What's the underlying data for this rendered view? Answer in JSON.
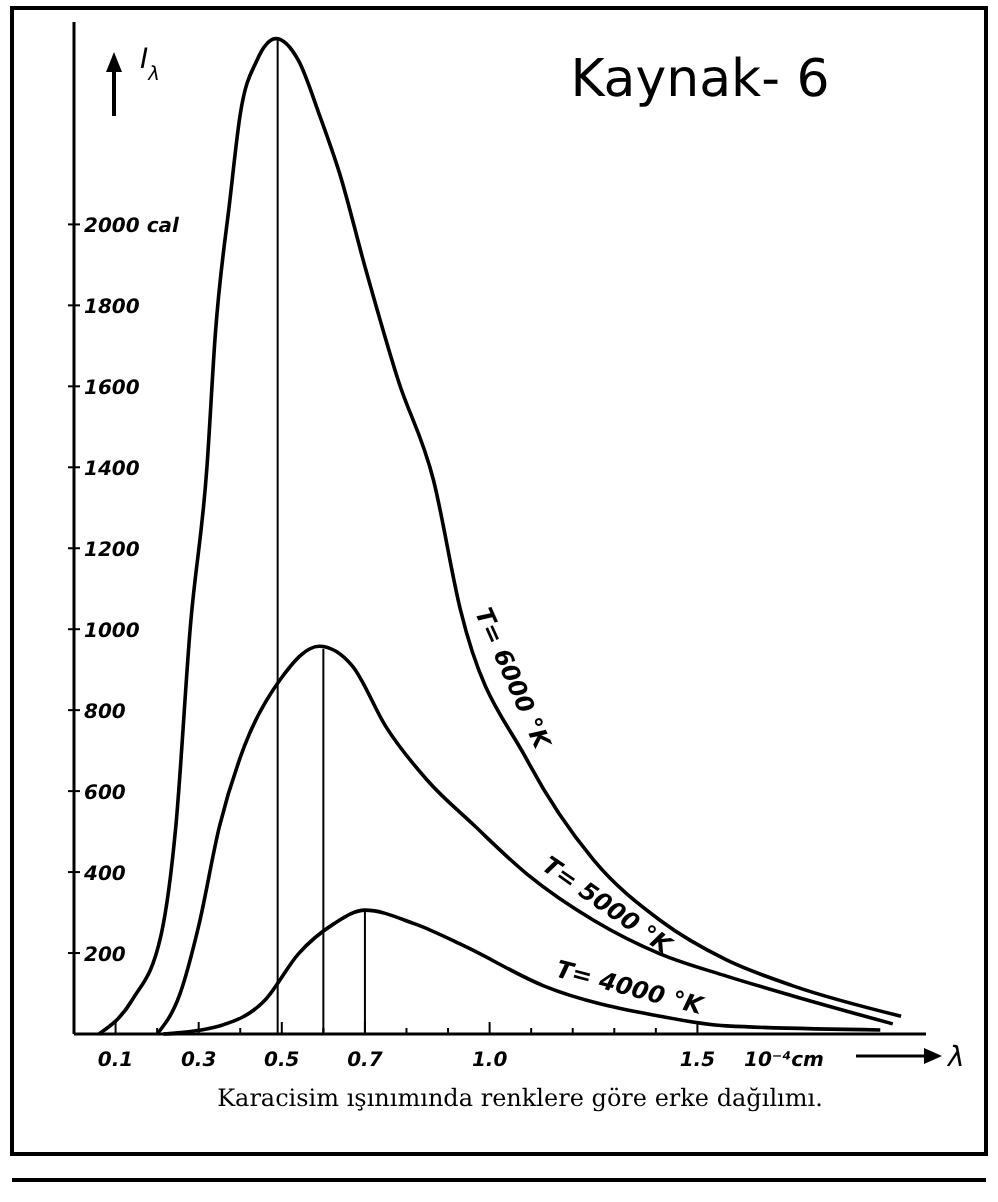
{
  "chart_data": {
    "type": "line",
    "title": "Kaynak- 6",
    "xlabel": "10⁻⁴cm",
    "ylabel": "I$_{λ}$",
    "annotations": [
      "λ",
      "Karacisim ışınımında renklere göre erke dağılımı."
    ],
    "xlim": [
      0,
      2.05
    ],
    "ylim": [
      0,
      2500
    ],
    "xticks": [
      0.1,
      {
        "value": 0.2,
        "label": null
      },
      0.3,
      {
        "value": 0.4,
        "label": null
      },
      0.5,
      {
        "value": 0.6,
        "label": null
      },
      0.7,
      {
        "value": 0.8,
        "label": null
      },
      {
        "value": 0.9,
        "label": null
      },
      {
        "value": 1,
        "label": "1.0"
      },
      {
        "value": 1.1,
        "label": null
      },
      {
        "value": 1.2,
        "label": null
      },
      {
        "value": 1.3,
        "label": null
      },
      {
        "value": 1.4,
        "label": null
      },
      1.5
    ],
    "yticks": [
      200,
      400,
      600,
      800,
      1000,
      1200,
      1400,
      1600,
      1800,
      {
        "value": 2000,
        "label": "2000 cal"
      }
    ],
    "grid": false,
    "marker": "none",
    "line_style": "solid",
    "ref_lines": [
      {
        "axis": "x",
        "value": 0.49,
        "color": "#000000"
      },
      {
        "axis": "x",
        "value": 0.6,
        "color": "#000000"
      },
      {
        "axis": "x",
        "value": 0.7,
        "color": "#000000"
      }
    ],
    "series": [
      {
        "name": "T= 6000 °K",
        "color": "#000000",
        "x": [
          0.06,
          0.14,
          0.21,
          0.245,
          0.28,
          0.32,
          0.34,
          0.375,
          0.4,
          0.44,
          0.486,
          0.54,
          0.59,
          0.64,
          0.7,
          0.78,
          0.865,
          0.93,
          1.09,
          1.25,
          1.41,
          1.57,
          1.73,
          1.99
        ],
        "values": [
          0,
          84,
          247,
          513,
          1007,
          1402,
          1728,
          2059,
          2272,
          2405,
          2459,
          2405,
          2272,
          2123,
          1896,
          1615,
          1368,
          1047,
          677,
          430,
          281,
          183,
          119,
          44
        ]
      },
      {
        "name": "T= 5000 °K",
        "color": "#000000",
        "x": [
          0.2,
          0.255,
          0.3,
          0.35,
          0.41,
          0.495,
          0.59,
          0.67,
          0.75,
          0.85,
          0.96,
          1.09,
          1.25,
          1.41,
          1.57,
          1.73,
          1.97
        ],
        "values": [
          0,
          99,
          267,
          513,
          711,
          874,
          958,
          909,
          760,
          627,
          518,
          395,
          281,
          198,
          143,
          94,
          25
        ]
      },
      {
        "name": "T= 4000 °K",
        "color": "#000000",
        "x": [
          0.215,
          0.35,
          0.46,
          0.54,
          0.625,
          0.7,
          0.82,
          0.94,
          1.13,
          1.41,
          1.57,
          1.94
        ],
        "values": [
          0,
          20,
          84,
          198,
          272,
          306,
          272,
          217,
          119,
          44,
          20,
          10
        ]
      }
    ]
  }
}
